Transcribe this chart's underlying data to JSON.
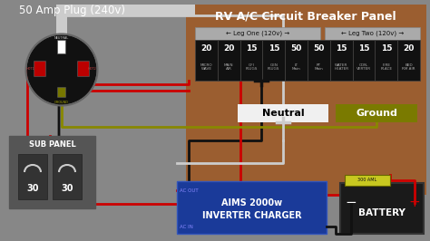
{
  "bg_color": "#878787",
  "title_plug": "50 Amp Plug (240v)",
  "title_panel": "RV A/C Circuit Breaker Panel",
  "panel_bg": "#9b5e30",
  "breaker_numbers": [
    "20",
    "20",
    "15",
    "15",
    "50",
    "50",
    "15",
    "15",
    "15",
    "20"
  ],
  "breaker_labels": [
    "MICRO\nWAVE",
    "MAIN\nAIR",
    "GFI\nPLUGS",
    "GEN\nPLUGS",
    "LT\nMain",
    "RT\nMain",
    "WATER\nHEATER",
    "CON-\nVERTER",
    "FIRE\nPLACE",
    "BED\nRM AIR"
  ],
  "leg1_label": "← Leg One (120v) →",
  "leg2_label": "← Leg Two (120v) →",
  "neutral_label": "Neutral",
  "ground_label": "Ground",
  "neutral_color": "#f0f0f0",
  "ground_color": "#7a7a00",
  "sub_panel_label": "SUB PANEL",
  "sub_breaker1": "30",
  "sub_breaker2": "30",
  "inverter_label": "AIMS 2000w\nINVERTER CHARGER",
  "inverter_color": "#1a3a99",
  "battery_label": "BATTERY",
  "battery_color": "#1a1a1a",
  "ac_out_label": "AC OUT",
  "ac_in_label": "AC IN",
  "wire_red": "#cc0000",
  "wire_black": "#111111",
  "wire_white": "#cccccc",
  "wire_yellow": "#888800",
  "fuse_label": "300 AML",
  "fuse_bg": "#c8c820"
}
